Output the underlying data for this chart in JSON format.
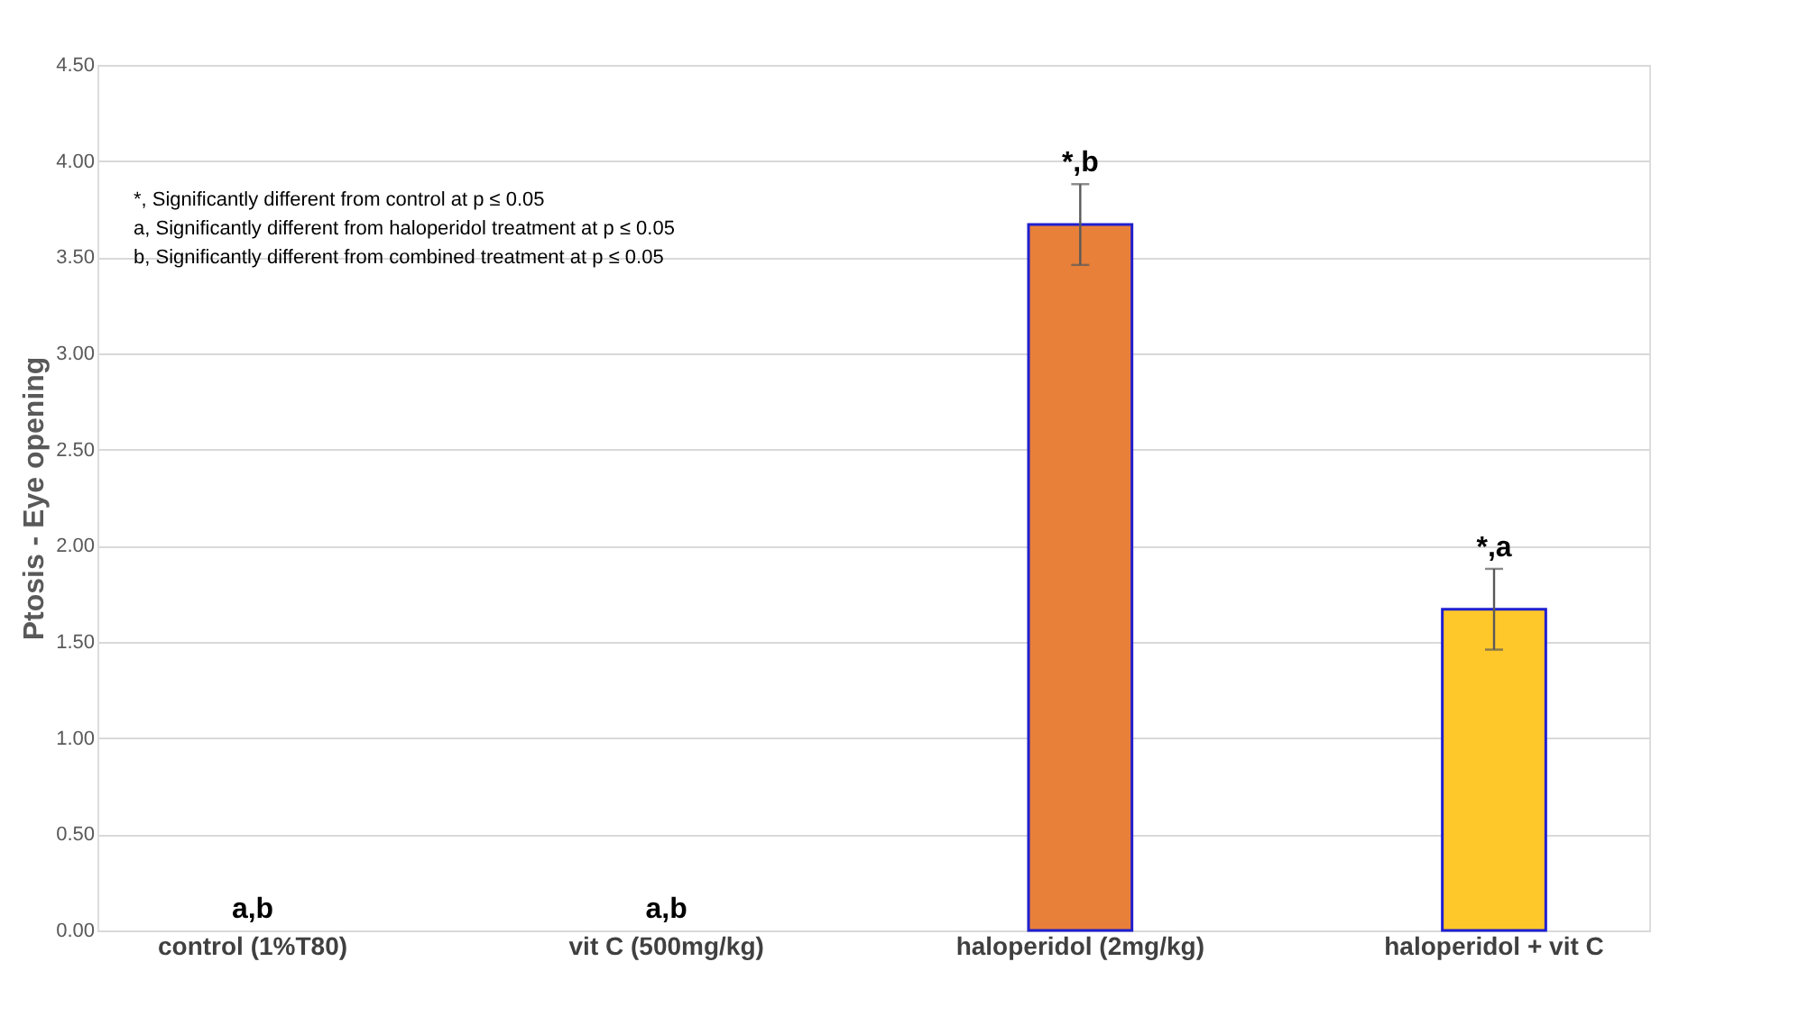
{
  "chart_data": {
    "type": "bar",
    "ylabel": "Ptosis - Eye opening",
    "categories": [
      "control (1%T80)",
      "vit C (500mg/kg)",
      "haloperidol (2mg/kg)",
      "haloperidol + vit C"
    ],
    "values": [
      0,
      0,
      3.67,
      1.67
    ],
    "colors": [
      "#e8803a",
      "#e8803a",
      "#e8803a",
      "#ffc82a"
    ],
    "errors": [
      null,
      null,
      0.21,
      0.21
    ],
    "ylim": [
      0,
      4.5
    ],
    "yticks": [
      {
        "value": 0,
        "label": "0.00"
      },
      {
        "value": 0.5,
        "label": "0.50"
      },
      {
        "value": 1,
        "label": "1.00"
      },
      {
        "value": 1.5,
        "label": "1.50"
      },
      {
        "value": 2,
        "label": "2.00"
      },
      {
        "value": 2.5,
        "label": "2.50"
      },
      {
        "value": 3,
        "label": "3.00"
      },
      {
        "value": 3.5,
        "label": "3.50"
      },
      {
        "value": 4,
        "label": "4.00"
      },
      {
        "value": 4.5,
        "label": "4.50"
      }
    ],
    "grid": "y",
    "annotations": [
      "*, Significantly different from control at p ≤ 0.05",
      "a, Significantly different from haloperidol treatment at p ≤ 0.05",
      "b, Significantly different from combined treatment at p ≤ 0.05",
      {
        "text": "a,b",
        "x": "control (1%T80)",
        "y": 0
      },
      {
        "text": "a,b",
        "x": "vit C (500mg/kg)",
        "y": 0
      },
      {
        "text": "*,b",
        "x": "haloperidol (2mg/kg)",
        "y": 3.88
      },
      {
        "text": "*,a",
        "x": "haloperidol + vit C",
        "y": 1.88
      }
    ]
  }
}
